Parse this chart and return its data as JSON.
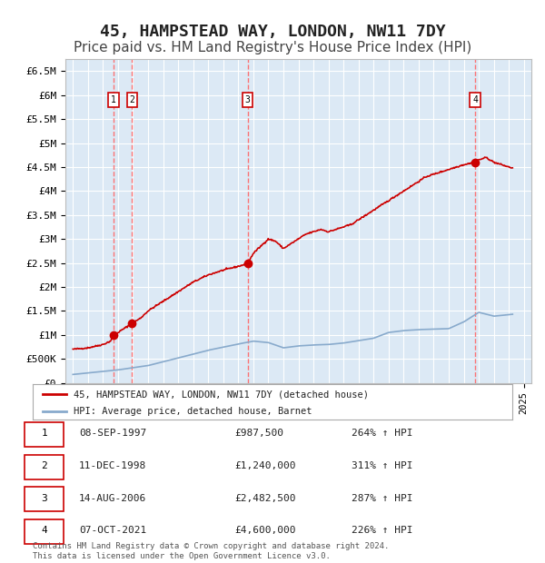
{
  "title": "45, HAMPSTEAD WAY, LONDON, NW11 7DY",
  "subtitle": "Price paid vs. HM Land Registry's House Price Index (HPI)",
  "title_fontsize": 13,
  "subtitle_fontsize": 11,
  "background_color": "#ffffff",
  "plot_bg_color": "#dce9f5",
  "grid_color": "#ffffff",
  "ylim": [
    0,
    6750000
  ],
  "yticks": [
    0,
    500000,
    1000000,
    1500000,
    2000000,
    2500000,
    3000000,
    3500000,
    4000000,
    4500000,
    5000000,
    5500000,
    6000000,
    6500000
  ],
  "ylabel_map": {
    "0": "£0",
    "500000": "£500K",
    "1000000": "£1M",
    "1500000": "£1.5M",
    "2000000": "£2M",
    "2500000": "£2.5M",
    "3000000": "£3M",
    "3500000": "£3.5M",
    "4000000": "£4M",
    "4500000": "£4.5M",
    "5000000": "£5M",
    "5500000": "£5.5M",
    "6000000": "£6M",
    "6500000": "£6.5M"
  },
  "sale_color": "#cc0000",
  "vline_color": "#ff6666",
  "label_box_color": "#cc0000",
  "xlim_start": 1994.5,
  "xlim_end": 2025.5,
  "sale_dates": [
    1997.69,
    1998.94,
    2006.62,
    2021.77
  ],
  "sale_prices": [
    987500,
    1240000,
    2482500,
    4600000
  ],
  "sale_labels": [
    "1",
    "2",
    "3",
    "4"
  ],
  "legend_label_sales": "45, HAMPSTEAD WAY, LONDON, NW11 7DY (detached house)",
  "legend_label_hpi": "HPI: Average price, detached house, Barnet",
  "table_rows": [
    [
      "1",
      "08-SEP-1997",
      "£987,500",
      "264% ↑ HPI"
    ],
    [
      "2",
      "11-DEC-1998",
      "£1,240,000",
      "311% ↑ HPI"
    ],
    [
      "3",
      "14-AUG-2006",
      "£2,482,500",
      "287% ↑ HPI"
    ],
    [
      "4",
      "07-OCT-2021",
      "£4,600,000",
      "226% ↑ HPI"
    ]
  ],
  "footer": "Contains HM Land Registry data © Crown copyright and database right 2024.\nThis data is licensed under the Open Government Licence v3.0.",
  "hpi_line_color": "#88aacc",
  "hpi_ctrl_years": [
    1995,
    1997,
    1998,
    2000,
    2002,
    2004,
    2006,
    2007,
    2008,
    2009,
    2010,
    2011,
    2012,
    2013,
    2014,
    2015,
    2016,
    2017,
    2018,
    2019,
    2020,
    2021,
    2022,
    2023,
    2024.25
  ],
  "hpi_ctrl_vals": [
    175000,
    240000,
    270000,
    360000,
    520000,
    680000,
    810000,
    870000,
    840000,
    730000,
    770000,
    790000,
    800000,
    830000,
    880000,
    930000,
    1050000,
    1090000,
    1110000,
    1120000,
    1130000,
    1270000,
    1470000,
    1390000,
    1430000
  ],
  "prop_ctrl_years": [
    1995,
    1996,
    1997,
    1997.5,
    1997.69,
    1998.0,
    1998.94,
    1999.5,
    2000,
    2001,
    2002,
    2003,
    2004,
    2005,
    2006,
    2006.62,
    2007,
    2007.5,
    2008,
    2008.5,
    2009,
    2009.5,
    2010,
    2010.5,
    2011,
    2011.5,
    2012,
    2012.5,
    2013,
    2013.5,
    2014,
    2014.5,
    2015,
    2015.5,
    2016,
    2016.5,
    2017,
    2017.5,
    2018,
    2018.5,
    2019,
    2019.5,
    2020,
    2020.5,
    2021,
    2021.5,
    2021.77,
    2022,
    2022.5,
    2023,
    2023.5,
    2024,
    2024.25
  ],
  "prop_ctrl_vals": [
    700000,
    730000,
    800000,
    870000,
    987500,
    1050000,
    1240000,
    1350000,
    1500000,
    1700000,
    1900000,
    2100000,
    2250000,
    2350000,
    2430000,
    2482500,
    2700000,
    2850000,
    3000000,
    2950000,
    2800000,
    2900000,
    3000000,
    3100000,
    3150000,
    3200000,
    3150000,
    3200000,
    3250000,
    3300000,
    3400000,
    3500000,
    3600000,
    3700000,
    3800000,
    3900000,
    4000000,
    4100000,
    4200000,
    4300000,
    4350000,
    4400000,
    4450000,
    4500000,
    4550000,
    4580000,
    4600000,
    4650000,
    4700000,
    4600000,
    4550000,
    4500000,
    4480000
  ]
}
